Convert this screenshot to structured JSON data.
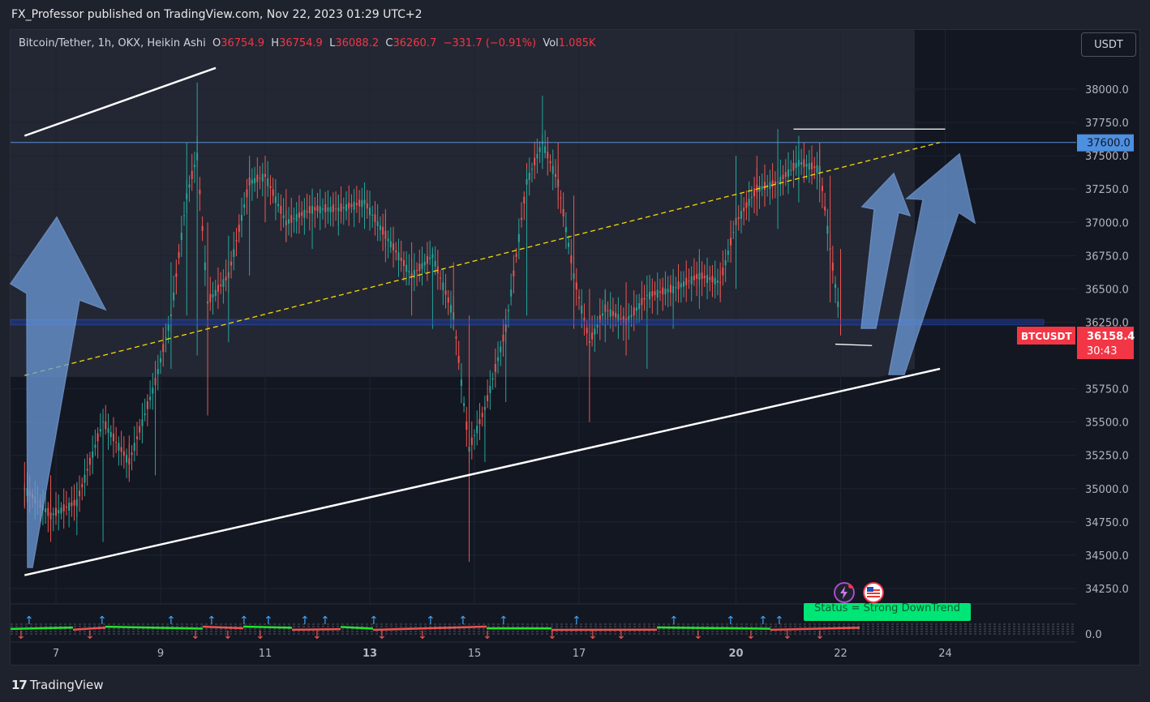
{
  "publisher_line": "FX_Professor published on TradingView.com, Nov 22, 2023 01:29 UTC+2",
  "legend": {
    "symbol": "Bitcoin/Tether, 1h, OKX, Heikin Ashi",
    "o_label": "O",
    "o_val": "36754.9",
    "h_label": "H",
    "h_val": "36754.9",
    "l_label": "L",
    "l_val": "36088.2",
    "c_label": "C",
    "c_val": "36260.7",
    "change": "−331.7 (−0.91%)",
    "vol_label": "Vol",
    "vol_val": "1.085K"
  },
  "currency_button": "USDT",
  "price_badges": {
    "level": "37600.0",
    "symbol_tag": "BTCUSDT",
    "last_price": "36158.4",
    "countdown": "30:43"
  },
  "indicator": {
    "status_text": "Status = Strong DownTrend",
    "zero_label": "0.0"
  },
  "footer_brand": "TradingView",
  "colors": {
    "background": "#131722",
    "up": "#26a69a",
    "down": "#ef5350",
    "level_blue": "#2962ff",
    "badge_blue": "#4d8fe0",
    "badge_red": "#f23645",
    "channel": "#ffffff",
    "midline": "#f5d90a",
    "arrow_fill": "#6a9ad8",
    "status_green": "#00e676"
  },
  "chart_data": {
    "type": "candlestick",
    "title": "Bitcoin/Tether, 1h, OKX, Heikin Ashi",
    "y_ticks": [
      "38000.0",
      "37750.0",
      "37500.0",
      "37250.0",
      "37000.0",
      "36750.0",
      "36500.0",
      "36250.0",
      "35750.0",
      "35500.0",
      "35250.0",
      "35000.0",
      "34750.0",
      "34500.0",
      "34250.0"
    ],
    "ylim": [
      34200,
      38250
    ],
    "x_ticks": [
      "7",
      "9",
      "11",
      "13",
      "15",
      "17",
      "20",
      "22",
      "24"
    ],
    "x_ticks_bold": [
      "13",
      "20"
    ],
    "horizontal_levels": [
      37600,
      36230,
      36270
    ],
    "channel_upper": [
      [
        6.4,
        37650
      ],
      [
        9.9,
        38050
      ]
    ],
    "channel_lower": [
      [
        6.4,
        34350
      ],
      [
        23.9,
        35900
      ]
    ],
    "channel_mid": [
      [
        6.4,
        35850
      ],
      [
        23.9,
        37600
      ]
    ],
    "short_lines": [
      [
        [
          21.1,
          37700
        ],
        [
          24,
          37700
        ]
      ],
      [
        [
          21.9,
          36085
        ],
        [
          22.6,
          36075
        ]
      ]
    ],
    "ohlc": [
      [
        6.4,
        35150,
        35000,
        35200,
        34850
      ],
      [
        6.9,
        34900,
        34800,
        35100,
        34600
      ],
      [
        7.4,
        34800,
        34900,
        35050,
        34650
      ],
      [
        7.9,
        34700,
        35500,
        35600,
        34600
      ],
      [
        8.4,
        35300,
        35200,
        35400,
        35050
      ],
      [
        8.9,
        35250,
        35800,
        35900,
        35100
      ],
      [
        9.2,
        36100,
        36300,
        36700,
        35900
      ],
      [
        9.5,
        36400,
        37200,
        37600,
        36300
      ],
      [
        9.7,
        37500,
        37500,
        38050,
        36000
      ],
      [
        9.9,
        37200,
        36400,
        37000,
        35550
      ],
      [
        10.3,
        36300,
        36600,
        36900,
        36100
      ],
      [
        10.7,
        36800,
        37300,
        37500,
        36600
      ],
      [
        11.0,
        37400,
        37350,
        37500,
        37000
      ],
      [
        11.4,
        37100,
        37000,
        37250,
        36850
      ],
      [
        11.9,
        36950,
        37100,
        37250,
        36800
      ],
      [
        12.4,
        37000,
        37100,
        37200,
        36900
      ],
      [
        12.9,
        37150,
        37150,
        37300,
        36950
      ],
      [
        13.3,
        37100,
        36900,
        37100,
        36700
      ],
      [
        13.8,
        36800,
        36600,
        36850,
        36300
      ],
      [
        14.2,
        36600,
        36750,
        36800,
        36200
      ],
      [
        14.6,
        36500,
        36300,
        36700,
        36200
      ],
      [
        14.9,
        36200,
        35300,
        36300,
        34450
      ],
      [
        15.2,
        35400,
        35600,
        35700,
        35200
      ],
      [
        15.6,
        35700,
        36200,
        36300,
        35650
      ],
      [
        16.0,
        36400,
        37300,
        37400,
        36300
      ],
      [
        16.3,
        37500,
        37600,
        37950,
        37400
      ],
      [
        16.6,
        37500,
        37300,
        37600,
        37100
      ],
      [
        16.9,
        37000,
        36600,
        37200,
        36200
      ],
      [
        17.2,
        36400,
        36100,
        36500,
        35500
      ],
      [
        17.5,
        36300,
        36350,
        36500,
        36100
      ],
      [
        17.9,
        36400,
        36250,
        36550,
        36000
      ],
      [
        18.3,
        36150,
        36450,
        36600,
        35900
      ],
      [
        18.8,
        36450,
        36500,
        36650,
        36200
      ],
      [
        19.3,
        36550,
        36600,
        36800,
        36350
      ],
      [
        19.7,
        36650,
        36550,
        36700,
        36400
      ],
      [
        20.0,
        36600,
        37000,
        37500,
        36500
      ],
      [
        20.4,
        37300,
        37250,
        37500,
        37050
      ],
      [
        20.8,
        37200,
        37300,
        37700,
        36950
      ],
      [
        21.2,
        37400,
        37450,
        37650,
        37150
      ],
      [
        21.6,
        37500,
        37400,
        37600,
        37150
      ],
      [
        21.8,
        37300,
        36800,
        37350,
        36400
      ],
      [
        22.0,
        36750,
        36250,
        36800,
        36150
      ]
    ]
  }
}
